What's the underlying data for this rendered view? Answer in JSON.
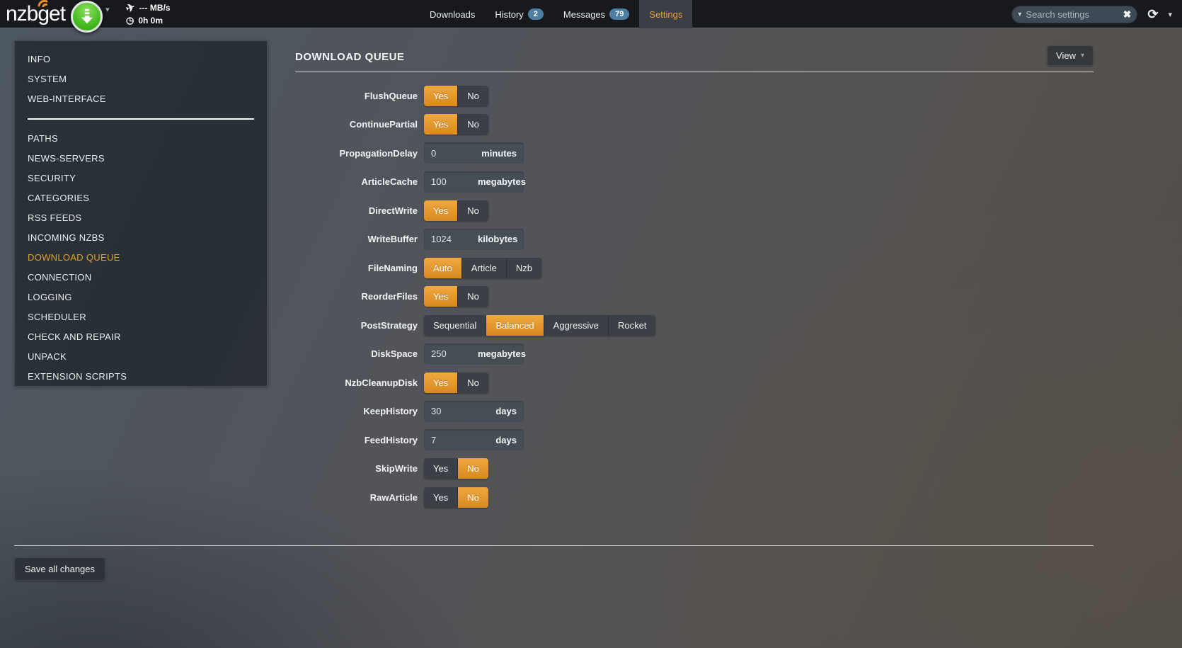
{
  "navbar": {
    "logo_text": "nzbget",
    "speed": "--- MB/s",
    "time": "0h 0m",
    "tabs": [
      {
        "label": "Downloads",
        "badge": null,
        "active": false
      },
      {
        "label": "History",
        "badge": "2",
        "active": false
      },
      {
        "label": "Messages",
        "badge": "79",
        "active": false
      },
      {
        "label": "Settings",
        "badge": null,
        "active": true
      }
    ],
    "search": {
      "placeholder": "Search settings",
      "value": ""
    }
  },
  "sidebar": {
    "top_items": [
      "INFO",
      "SYSTEM",
      "WEB-INTERFACE"
    ],
    "bottom_items": [
      "PATHS",
      "NEWS-SERVERS",
      "SECURITY",
      "CATEGORIES",
      "RSS FEEDS",
      "INCOMING NZBS",
      "DOWNLOAD QUEUE",
      "CONNECTION",
      "LOGGING",
      "SCHEDULER",
      "CHECK AND REPAIR",
      "UNPACK",
      "EXTENSION SCRIPTS"
    ],
    "active_item": "DOWNLOAD QUEUE"
  },
  "main": {
    "title": "DOWNLOAD QUEUE",
    "view_button_label": "View",
    "rows": [
      {
        "label": "FlushQueue",
        "type": "toggle",
        "options": [
          "Yes",
          "No"
        ],
        "selected": "Yes"
      },
      {
        "label": "ContinuePartial",
        "type": "toggle",
        "options": [
          "Yes",
          "No"
        ],
        "selected": "Yes"
      },
      {
        "label": "PropagationDelay",
        "type": "input",
        "value": "0",
        "unit": "minutes"
      },
      {
        "label": "ArticleCache",
        "type": "input",
        "value": "100",
        "unit": "megabytes"
      },
      {
        "label": "DirectWrite",
        "type": "toggle",
        "options": [
          "Yes",
          "No"
        ],
        "selected": "Yes"
      },
      {
        "label": "WriteBuffer",
        "type": "input",
        "value": "1024",
        "unit": "kilobytes"
      },
      {
        "label": "FileNaming",
        "type": "toggle",
        "options": [
          "Auto",
          "Article",
          "Nzb"
        ],
        "selected": "Auto"
      },
      {
        "label": "ReorderFiles",
        "type": "toggle",
        "options": [
          "Yes",
          "No"
        ],
        "selected": "Yes"
      },
      {
        "label": "PostStrategy",
        "type": "toggle",
        "options": [
          "Sequential",
          "Balanced",
          "Aggressive",
          "Rocket"
        ],
        "selected": "Balanced"
      },
      {
        "label": "DiskSpace",
        "type": "input",
        "value": "250",
        "unit": "megabytes"
      },
      {
        "label": "NzbCleanupDisk",
        "type": "toggle",
        "options": [
          "Yes",
          "No"
        ],
        "selected": "Yes"
      },
      {
        "label": "KeepHistory",
        "type": "input",
        "value": "30",
        "unit": "days"
      },
      {
        "label": "FeedHistory",
        "type": "input",
        "value": "7",
        "unit": "days"
      },
      {
        "label": "SkipWrite",
        "type": "toggle",
        "options": [
          "Yes",
          "No"
        ],
        "selected": "No"
      },
      {
        "label": "RawArticle",
        "type": "toggle",
        "options": [
          "Yes",
          "No"
        ],
        "selected": "No"
      }
    ],
    "save_button_label": "Save all changes"
  },
  "colors": {
    "accent_orange": "#e39b2d",
    "badge_blue": "#4d7fa3",
    "navbar_bg": "#17191d",
    "panel_bg": "#272d33",
    "button_dark": "#3a4046",
    "play_green": "#4cc024"
  },
  "icons": {
    "play_caret": "caret-down",
    "speed": "airplane",
    "time": "clock",
    "search_left": "caret-down",
    "search_clear": "x-circle",
    "refresh": "refresh-arrows",
    "nav_more": "caret-down",
    "view_caret": "caret-down",
    "logo_mark": "signal-arcs",
    "play_button": "download-arrow"
  }
}
